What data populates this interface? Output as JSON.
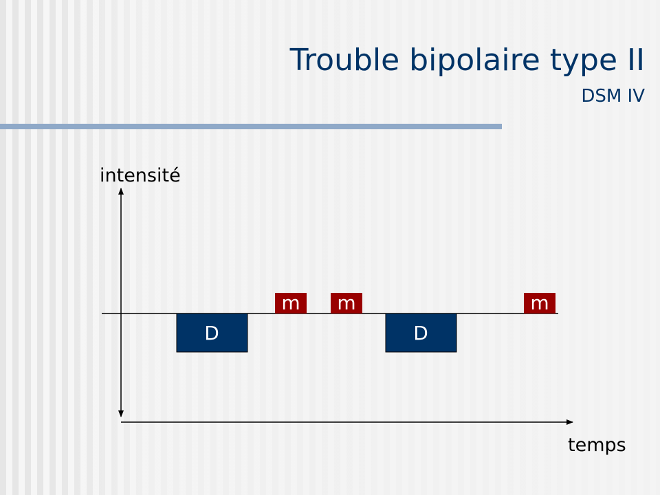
{
  "header": {
    "title": "Trouble bipolaire type II",
    "subtitle": "DSM IV"
  },
  "axes": {
    "y_label": "intensité",
    "x_label": "temps"
  },
  "blocks": [
    {
      "label": "D"
    },
    {
      "label": "m"
    },
    {
      "label": "m"
    },
    {
      "label": "D"
    },
    {
      "label": "m"
    }
  ]
}
